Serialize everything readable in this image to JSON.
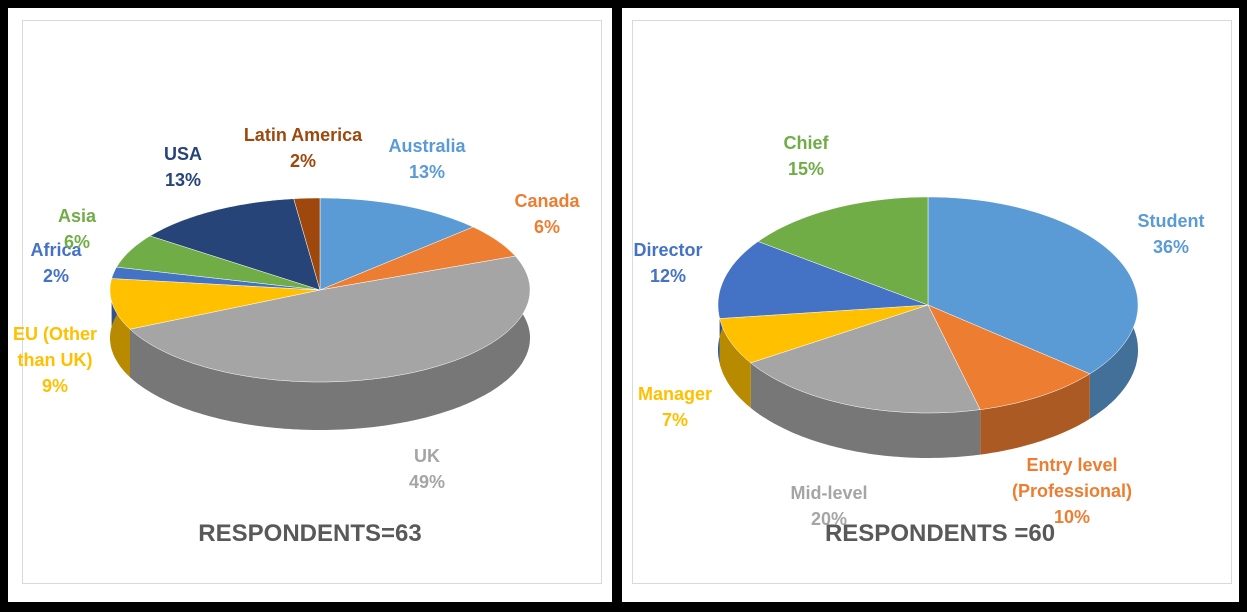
{
  "chart_data": [
    {
      "type": "pie",
      "title": "RESPONDENTS=63",
      "categories": [
        "Australia",
        "Canada",
        "UK",
        "EU (Other than UK)",
        "Africa",
        "Asia",
        "USA",
        "Latin America"
      ],
      "values": [
        13,
        6,
        49,
        9,
        2,
        6,
        13,
        2
      ],
      "value_labels": [
        "13%",
        "6%",
        "49%",
        "9%",
        "2%",
        "6%",
        "13%",
        "2%"
      ],
      "colors": [
        "#5b9bd5",
        "#ed7d31",
        "#a5a5a5",
        "#ffc000",
        "#4472c4",
        "#70ad47",
        "#264478",
        "#9e480e"
      ]
    },
    {
      "type": "pie",
      "title": "RESPONDENTS =60",
      "categories": [
        "Student",
        "Entry level (Professional)",
        "Mid-level",
        "Manager",
        "Director",
        "Chief"
      ],
      "values": [
        36,
        10,
        20,
        7,
        12,
        15
      ],
      "value_labels": [
        "36%",
        "10%",
        "20%",
        "7%",
        "12%",
        "15%"
      ],
      "colors": [
        "#5b9bd5",
        "#ed7d31",
        "#a5a5a5",
        "#ffc000",
        "#4472c4",
        "#70ad47"
      ]
    }
  ]
}
